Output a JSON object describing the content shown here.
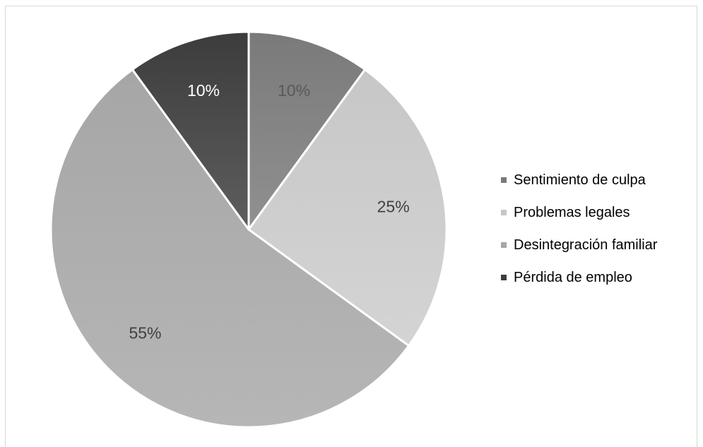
{
  "chart_data": {
    "type": "pie",
    "title": "",
    "slices": [
      {
        "label": "Sentimiento de culpa",
        "value": 10,
        "display": "10%",
        "color": "#7a7a7a",
        "color_light": "#909090",
        "label_color": "#595959"
      },
      {
        "label": "Problemas legales",
        "value": 25,
        "display": "25%",
        "color": "#c7c7c7",
        "color_light": "#d4d4d4",
        "label_color": "#404040"
      },
      {
        "label": "Desintegración familiar",
        "value": 55,
        "display": "55%",
        "color": "#a6a6a6",
        "color_light": "#b6b6b6",
        "label_color": "#404040"
      },
      {
        "label": "Pérdida de empleo",
        "value": 10,
        "display": "10%",
        "color": "#3c3c3c",
        "color_light": "#5e5e5e",
        "label_color": "#ffffff"
      }
    ],
    "start_angle_deg": 0,
    "direction": "clockwise",
    "legend_position": "right"
  }
}
